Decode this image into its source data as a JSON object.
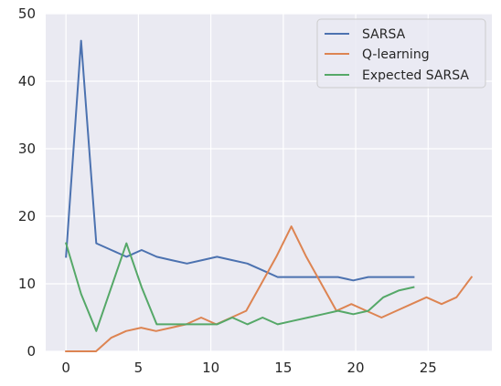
{
  "chart_data": {
    "type": "line",
    "title": "",
    "xlabel": "",
    "ylabel": "",
    "xlim": [
      -1.4,
      29.4
    ],
    "ylim": [
      0,
      50
    ],
    "xticks": [
      0,
      5,
      10,
      15,
      20,
      25
    ],
    "yticks": [
      0,
      10,
      20,
      30,
      40,
      50
    ],
    "grid": true,
    "background": "#eaeaf2",
    "legend": {
      "placement": "top-right",
      "entries": [
        "SARSA",
        "Q-learning",
        "Expected SARSA"
      ]
    },
    "series": [
      {
        "name": "SARSA",
        "color": "#4c72b0",
        "x": [
          0.0,
          1.04,
          2.09,
          3.13,
          4.17,
          5.22,
          6.26,
          7.3,
          8.35,
          9.39,
          10.43,
          11.48,
          12.52,
          13.57,
          14.61,
          15.65,
          16.7,
          17.74,
          18.78,
          19.83,
          20.87,
          21.91,
          22.96,
          24.0
        ],
        "values": [
          14,
          46,
          16,
          15,
          14,
          15,
          14,
          13.5,
          13,
          13.5,
          14,
          13.5,
          13,
          12,
          11,
          11,
          11,
          11,
          11,
          10.5,
          11,
          11,
          11,
          11
        ]
      },
      {
        "name": "Q-learning",
        "color": "#dd8452",
        "x": [
          0.0,
          1.04,
          2.07,
          3.11,
          4.15,
          5.19,
          6.22,
          7.26,
          8.3,
          9.33,
          10.37,
          11.41,
          12.44,
          13.48,
          14.52,
          15.56,
          16.59,
          17.63,
          18.67,
          19.7,
          20.74,
          21.78,
          22.81,
          23.85,
          24.89,
          25.93,
          26.96,
          28.0
        ],
        "values": [
          0,
          0,
          0,
          2,
          3,
          3.5,
          3,
          3.5,
          4,
          5,
          4,
          5,
          6,
          10,
          14,
          18.5,
          14,
          10,
          6,
          7,
          6,
          5,
          6,
          7,
          8,
          7,
          8,
          11
        ]
      },
      {
        "name": "Expected SARSA",
        "color": "#55a868",
        "x": [
          0.0,
          1.04,
          2.09,
          3.13,
          4.17,
          5.22,
          6.26,
          7.3,
          8.35,
          9.39,
          10.43,
          11.48,
          12.52,
          13.57,
          14.61,
          15.65,
          16.7,
          17.74,
          18.78,
          19.83,
          20.87,
          21.91,
          22.96,
          24.0
        ],
        "values": [
          16,
          8.5,
          3,
          9.5,
          16,
          9.5,
          4,
          4,
          4,
          4,
          4,
          5,
          4,
          5,
          4,
          4.5,
          5,
          5.5,
          6,
          5.5,
          6,
          8,
          9,
          9.5
        ]
      }
    ]
  }
}
